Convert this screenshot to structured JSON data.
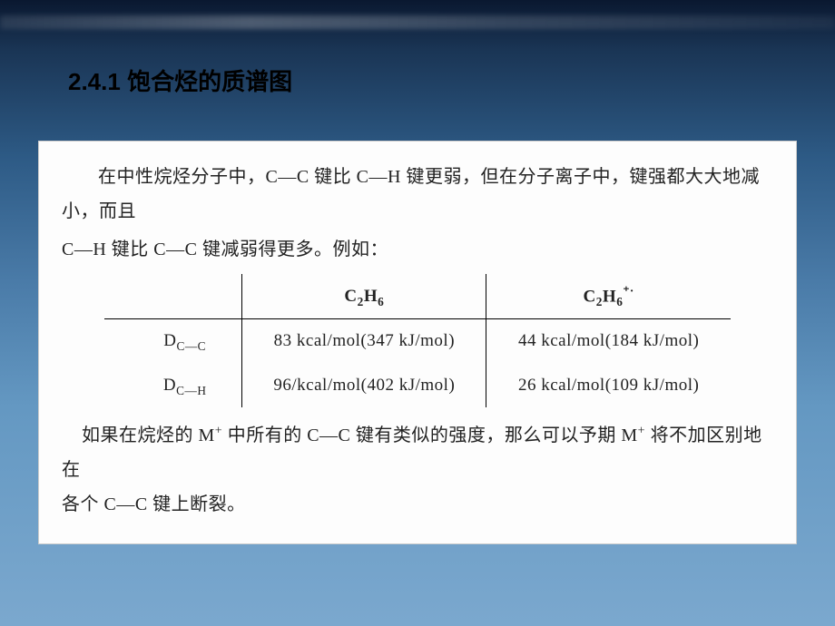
{
  "slide": {
    "section_number": "2.4.1",
    "section_title": "饱合烃的质谱图",
    "title_fontsize": 26,
    "title_color": "#000000",
    "title_font": "SimHei"
  },
  "background": {
    "gradient_top": "#0a1830",
    "gradient_upper_mid": "#2d5a85",
    "gradient_lower": "#7ba8ce"
  },
  "scan": {
    "bg_color": "#fdfdfd",
    "text_color": "#222222",
    "fontsize": 20,
    "font": "KaiTi",
    "paragraph1": "在中性烷烃分子中，C—C 键比 C—H 键更弱，但在分子离子中，键强都大大地减小，而且",
    "paragraph2": "C—H 键比 C—C 键减弱得更多。例如：",
    "paragraph3_a": "如果在烷烃的 M",
    "paragraph3_b": " 中所有的 C—C 键有类似的强度，那么可以予期 M",
    "paragraph3_c": " 将不加区别地 在",
    "paragraph4": "各个 C—C 键上断裂。",
    "m_super": "+"
  },
  "table": {
    "columns": [
      "",
      "C₂H₆",
      "C₂H₆⁺·"
    ],
    "col1_formula_base": "C",
    "col1_formula_sub1": "2",
    "col1_formula_mid": "H",
    "col1_formula_sub2": "6",
    "col2_formula_base": "C",
    "col2_formula_sub1": "2",
    "col2_formula_mid": "H",
    "col2_formula_sub2": "6",
    "col2_sup": "⁺·",
    "rows": [
      {
        "label_base": "D",
        "label_sub": "C—C",
        "val1": "83 kcal/mol(347 kJ/mol)",
        "val2": "44 kcal/mol(184 kJ/mol)"
      },
      {
        "label_base": "D",
        "label_sub": "C—H",
        "val1": "96/kcal/mol(402 kJ/mol)",
        "val2": "26 kcal/mol(109 kJ/mol)"
      }
    ],
    "border_color": "#000000",
    "border_width": 1.5,
    "cell_fontsize": 19
  }
}
